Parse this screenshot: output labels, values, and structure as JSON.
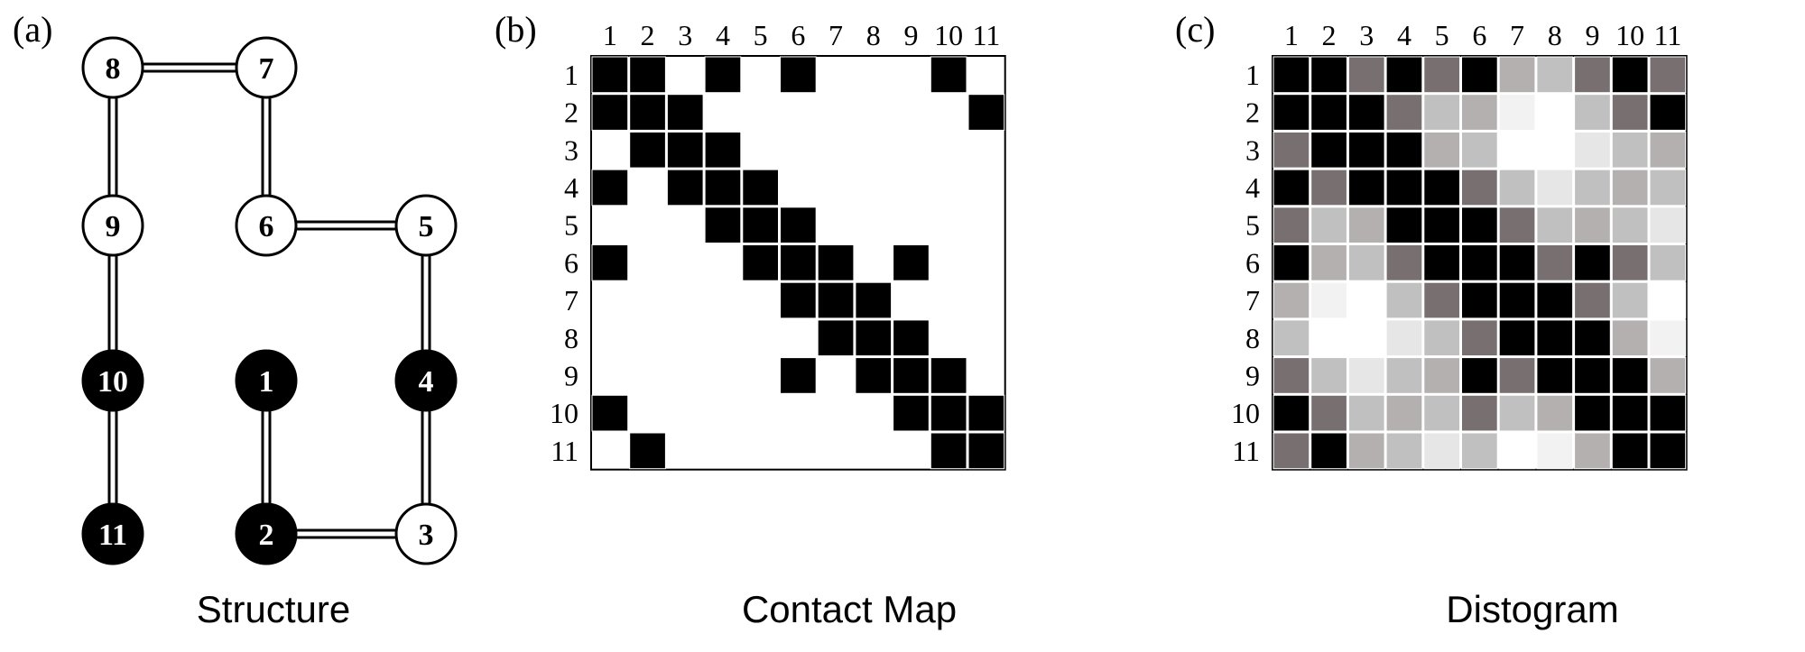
{
  "panels": [
    {
      "label": "(a)",
      "caption": "Structure"
    },
    {
      "label": "(b)",
      "caption": "Contact Map"
    },
    {
      "label": "(c)",
      "caption": "Distogram"
    }
  ],
  "structure": {
    "nodes": [
      {
        "id": "8",
        "filled": false
      },
      {
        "id": "7",
        "filled": false
      },
      {
        "id": "9",
        "filled": false
      },
      {
        "id": "6",
        "filled": false
      },
      {
        "id": "5",
        "filled": false
      },
      {
        "id": "10",
        "filled": true
      },
      {
        "id": "1",
        "filled": true
      },
      {
        "id": "4",
        "filled": true
      },
      {
        "id": "11",
        "filled": true
      },
      {
        "id": "2",
        "filled": true
      },
      {
        "id": "3",
        "filled": false
      }
    ],
    "bonds": [
      [
        "8",
        "7"
      ],
      [
        "8",
        "9"
      ],
      [
        "7",
        "6"
      ],
      [
        "6",
        "5"
      ],
      [
        "9",
        "10"
      ],
      [
        "5",
        "4"
      ],
      [
        "10",
        "11"
      ],
      [
        "1",
        "2"
      ],
      [
        "4",
        "3"
      ],
      [
        "2",
        "3"
      ]
    ]
  },
  "contact_map": {
    "labels": [
      "1",
      "2",
      "3",
      "4",
      "5",
      "6",
      "7",
      "8",
      "9",
      "10",
      "11"
    ],
    "matrix": [
      [
        1,
        1,
        0,
        1,
        0,
        1,
        0,
        0,
        0,
        1,
        0
      ],
      [
        1,
        1,
        1,
        0,
        0,
        0,
        0,
        0,
        0,
        0,
        1
      ],
      [
        0,
        1,
        1,
        1,
        0,
        0,
        0,
        0,
        0,
        0,
        0
      ],
      [
        1,
        0,
        1,
        1,
        1,
        0,
        0,
        0,
        0,
        0,
        0
      ],
      [
        0,
        0,
        0,
        1,
        1,
        1,
        0,
        0,
        0,
        0,
        0
      ],
      [
        1,
        0,
        0,
        0,
        1,
        1,
        1,
        0,
        1,
        0,
        0
      ],
      [
        0,
        0,
        0,
        0,
        0,
        1,
        1,
        1,
        0,
        0,
        0
      ],
      [
        0,
        0,
        0,
        0,
        0,
        0,
        1,
        1,
        1,
        0,
        0
      ],
      [
        0,
        0,
        0,
        0,
        0,
        1,
        0,
        1,
        1,
        1,
        0
      ],
      [
        1,
        0,
        0,
        0,
        0,
        0,
        0,
        0,
        1,
        1,
        1
      ],
      [
        0,
        1,
        0,
        0,
        0,
        0,
        0,
        0,
        0,
        1,
        1
      ]
    ]
  },
  "distogram": {
    "labels": [
      "1",
      "2",
      "3",
      "4",
      "5",
      "6",
      "7",
      "8",
      "9",
      "10",
      "11"
    ],
    "colors": [
      [
        "#000000",
        "#000000",
        "#787070",
        "#000000",
        "#787070",
        "#000000",
        "#b4b0b0",
        "#c0c0c0",
        "#787070",
        "#000000",
        "#787070"
      ],
      [
        "#000000",
        "#000000",
        "#000000",
        "#787070",
        "#c0c0c0",
        "#b4b0b0",
        "#f2f2f2",
        "#ffffff",
        "#c0c0c0",
        "#787070",
        "#000000"
      ],
      [
        "#787070",
        "#000000",
        "#000000",
        "#000000",
        "#b4b0b0",
        "#c0c0c0",
        "#ffffff",
        "#ffffff",
        "#e6e6e6",
        "#c0c0c0",
        "#b4b0b0"
      ],
      [
        "#000000",
        "#787070",
        "#000000",
        "#000000",
        "#000000",
        "#787070",
        "#c0c0c0",
        "#e6e6e6",
        "#c0c0c0",
        "#b4b0b0",
        "#c0c0c0"
      ],
      [
        "#787070",
        "#c0c0c0",
        "#b4b0b0",
        "#000000",
        "#000000",
        "#000000",
        "#787070",
        "#c0c0c0",
        "#b4b0b0",
        "#c0c0c0",
        "#e6e6e6"
      ],
      [
        "#000000",
        "#b4b0b0",
        "#c0c0c0",
        "#787070",
        "#000000",
        "#000000",
        "#000000",
        "#787070",
        "#000000",
        "#787070",
        "#c0c0c0"
      ],
      [
        "#b4b0b0",
        "#f2f2f2",
        "#ffffff",
        "#c0c0c0",
        "#787070",
        "#000000",
        "#000000",
        "#000000",
        "#787070",
        "#c0c0c0",
        "#ffffff"
      ],
      [
        "#c0c0c0",
        "#ffffff",
        "#ffffff",
        "#e6e6e6",
        "#c0c0c0",
        "#787070",
        "#000000",
        "#000000",
        "#000000",
        "#b4b0b0",
        "#f2f2f2"
      ],
      [
        "#787070",
        "#c0c0c0",
        "#e6e6e6",
        "#c0c0c0",
        "#b4b0b0",
        "#000000",
        "#787070",
        "#000000",
        "#000000",
        "#000000",
        "#b4b0b0"
      ],
      [
        "#000000",
        "#787070",
        "#c0c0c0",
        "#b4b0b0",
        "#c0c0c0",
        "#787070",
        "#c0c0c0",
        "#b4b0b0",
        "#000000",
        "#000000",
        "#000000"
      ],
      [
        "#787070",
        "#000000",
        "#b4b0b0",
        "#c0c0c0",
        "#e6e6e6",
        "#c0c0c0",
        "#ffffff",
        "#f2f2f2",
        "#b4b0b0",
        "#000000",
        "#000000"
      ]
    ]
  }
}
